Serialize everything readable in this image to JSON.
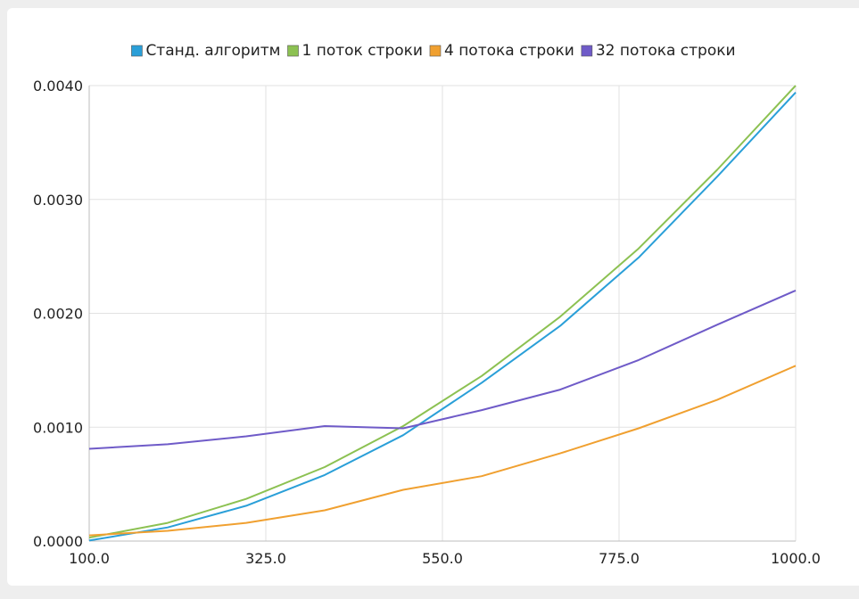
{
  "chart_data": {
    "type": "line",
    "title": "",
    "xlabel": "",
    "ylabel": "",
    "xlim": [
      100,
      1000
    ],
    "ylim": [
      0,
      0.004
    ],
    "x_ticks": [
      "100.0",
      "325.0",
      "550.0",
      "775.0",
      "1000.0"
    ],
    "x_tick_values": [
      100,
      325,
      550,
      775,
      1000
    ],
    "y_ticks": [
      "0.0000",
      "0.0010",
      "0.0020",
      "0.0030",
      "0.0040"
    ],
    "y_tick_values": [
      0,
      0.001,
      0.002,
      0.003,
      0.004
    ],
    "grid": true,
    "legend_position": "top",
    "x": [
      100,
      200,
      300,
      400,
      500,
      600,
      700,
      800,
      900,
      1000
    ],
    "series": [
      {
        "name": "Станд. алгоритм",
        "color": "#2a9fd8",
        "values": [
          5e-06,
          0.00012,
          0.00031,
          0.00058,
          0.00093,
          0.00139,
          0.00189,
          0.00249,
          0.0032,
          0.00394
        ]
      },
      {
        "name": "1 поток строки",
        "color": "#8cc152",
        "values": [
          3e-05,
          0.00016,
          0.00037,
          0.00065,
          0.00101,
          0.00145,
          0.00197,
          0.00257,
          0.00326,
          0.004
        ]
      },
      {
        "name": "4 потока строки",
        "color": "#f0a030",
        "values": [
          5e-05,
          9e-05,
          0.00016,
          0.00027,
          0.00045,
          0.00057,
          0.00077,
          0.00099,
          0.00124,
          0.00154
        ]
      },
      {
        "name": "32 потока строки",
        "color": "#6f5bc8",
        "values": [
          0.00081,
          0.00085,
          0.00092,
          0.00101,
          0.00099,
          0.00115,
          0.00133,
          0.00159,
          0.0019,
          0.0022
        ]
      }
    ]
  }
}
